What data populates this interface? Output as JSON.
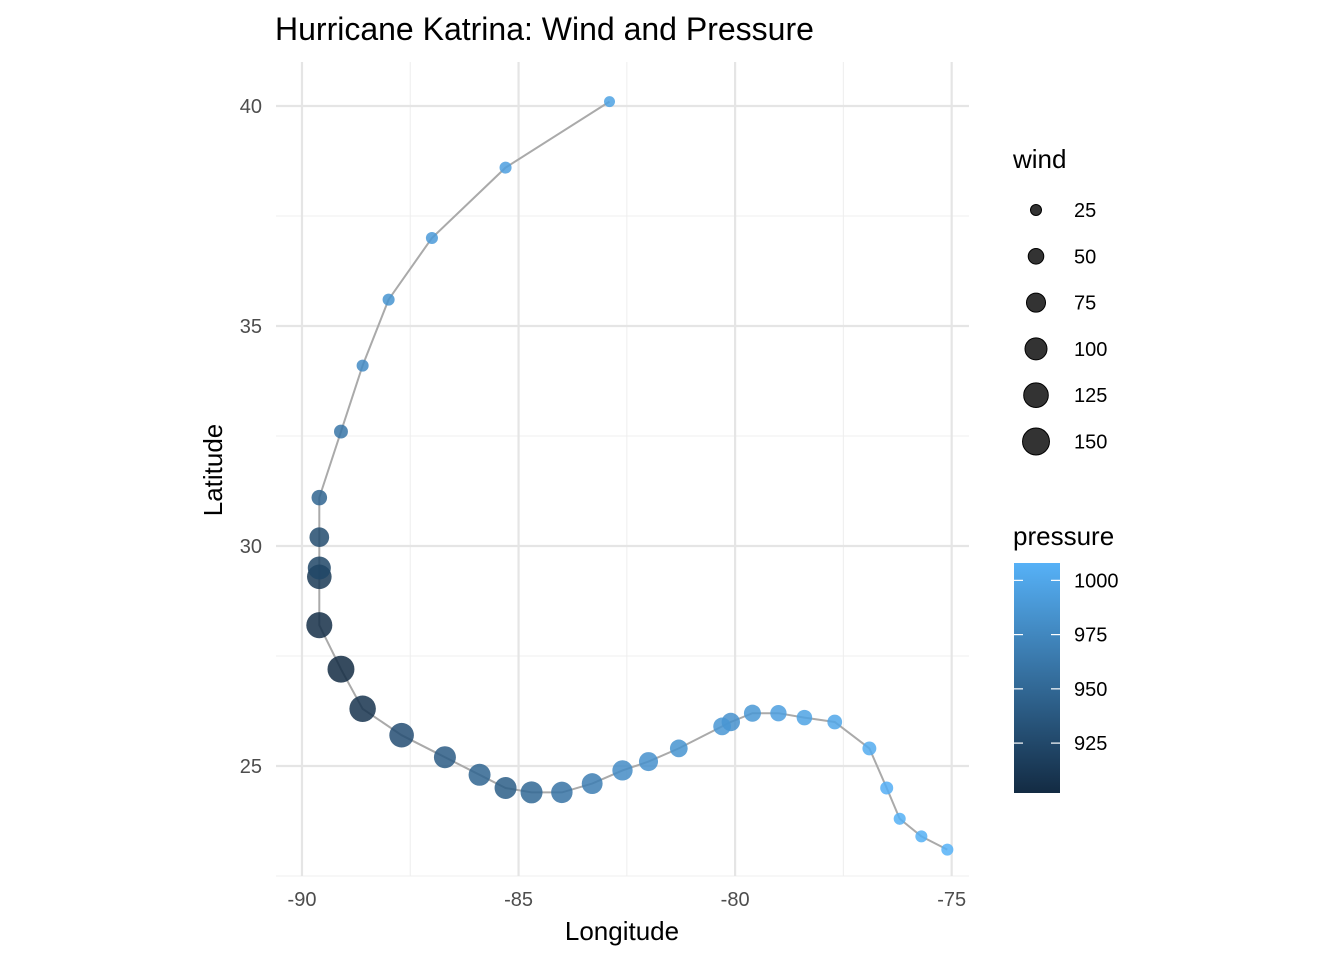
{
  "chart_data": {
    "type": "scatter",
    "title": "Hurricane Katrina: Wind and Pressure",
    "xlabel": "Longitude",
    "ylabel": "Latitude",
    "xlim": [
      -90.6,
      -74.6
    ],
    "ylim": [
      22.5,
      41.0
    ],
    "x_ticks": [
      -90,
      -85,
      -80,
      -75
    ],
    "y_ticks": [
      25,
      30,
      35,
      40
    ],
    "grid": true,
    "points": [
      {
        "lon": -75.1,
        "lat": 23.1,
        "wind": 30,
        "pressure": 1008
      },
      {
        "lon": -75.7,
        "lat": 23.4,
        "wind": 30,
        "pressure": 1007
      },
      {
        "lon": -76.2,
        "lat": 23.8,
        "wind": 30,
        "pressure": 1007
      },
      {
        "lon": -76.5,
        "lat": 24.5,
        "wind": 35,
        "pressure": 1006
      },
      {
        "lon": -76.9,
        "lat": 25.4,
        "wind": 40,
        "pressure": 1003
      },
      {
        "lon": -77.7,
        "lat": 26.0,
        "wind": 45,
        "pressure": 1000
      },
      {
        "lon": -78.4,
        "lat": 26.1,
        "wind": 50,
        "pressure": 997
      },
      {
        "lon": -79.0,
        "lat": 26.2,
        "wind": 55,
        "pressure": 994
      },
      {
        "lon": -79.6,
        "lat": 26.2,
        "wind": 60,
        "pressure": 988
      },
      {
        "lon": -80.1,
        "lat": 26.0,
        "wind": 70,
        "pressure": 983
      },
      {
        "lon": -80.3,
        "lat": 25.9,
        "wind": 65,
        "pressure": 987
      },
      {
        "lon": -81.3,
        "lat": 25.4,
        "wind": 65,
        "pressure": 985
      },
      {
        "lon": -82.0,
        "lat": 25.1,
        "wind": 75,
        "pressure": 983
      },
      {
        "lon": -82.6,
        "lat": 24.9,
        "wind": 85,
        "pressure": 979
      },
      {
        "lon": -83.3,
        "lat": 24.6,
        "wind": 90,
        "pressure": 968
      },
      {
        "lon": -84.0,
        "lat": 24.4,
        "wind": 95,
        "pressure": 959
      },
      {
        "lon": -84.7,
        "lat": 24.4,
        "wind": 100,
        "pressure": 950
      },
      {
        "lon": -85.3,
        "lat": 24.5,
        "wind": 100,
        "pressure": 942
      },
      {
        "lon": -85.9,
        "lat": 24.8,
        "wind": 100,
        "pressure": 948
      },
      {
        "lon": -86.7,
        "lat": 25.2,
        "wind": 100,
        "pressure": 941
      },
      {
        "lon": -87.7,
        "lat": 25.7,
        "wind": 125,
        "pressure": 930
      },
      {
        "lon": -88.6,
        "lat": 26.3,
        "wind": 145,
        "pressure": 909
      },
      {
        "lon": -89.1,
        "lat": 27.2,
        "wind": 150,
        "pressure": 902
      },
      {
        "lon": -89.6,
        "lat": 28.2,
        "wind": 140,
        "pressure": 905
      },
      {
        "lon": -89.6,
        "lat": 29.3,
        "wind": 125,
        "pressure": 913
      },
      {
        "lon": -89.6,
        "lat": 29.5,
        "wind": 110,
        "pressure": 923
      },
      {
        "lon": -89.6,
        "lat": 30.2,
        "wind": 80,
        "pressure": 928
      },
      {
        "lon": -89.6,
        "lat": 31.1,
        "wind": 50,
        "pressure": 948
      },
      {
        "lon": -89.1,
        "lat": 32.6,
        "wind": 40,
        "pressure": 961
      },
      {
        "lon": -88.6,
        "lat": 34.1,
        "wind": 30,
        "pressure": 978
      },
      {
        "lon": -88.0,
        "lat": 35.6,
        "wind": 30,
        "pressure": 985
      },
      {
        "lon": -87.0,
        "lat": 37.0,
        "wind": 30,
        "pressure": 990
      },
      {
        "lon": -85.3,
        "lat": 38.6,
        "wind": 30,
        "pressure": 994
      },
      {
        "lon": -82.9,
        "lat": 40.1,
        "wind": 25,
        "pressure": 996
      }
    ],
    "legend": {
      "placement": "right",
      "wind": {
        "title": "wind",
        "breaks": [
          25,
          50,
          75,
          100,
          125,
          150
        ],
        "labels": [
          "25",
          "50",
          "75",
          "100",
          "125",
          "150"
        ]
      },
      "pressure": {
        "title": "pressure",
        "range": [
          902,
          1008
        ],
        "breaks": [
          925,
          950,
          975,
          1000
        ],
        "labels": [
          "925",
          "950",
          "975",
          "1000"
        ],
        "color_low": "#132b43",
        "color_high": "#56b1f7"
      }
    }
  }
}
